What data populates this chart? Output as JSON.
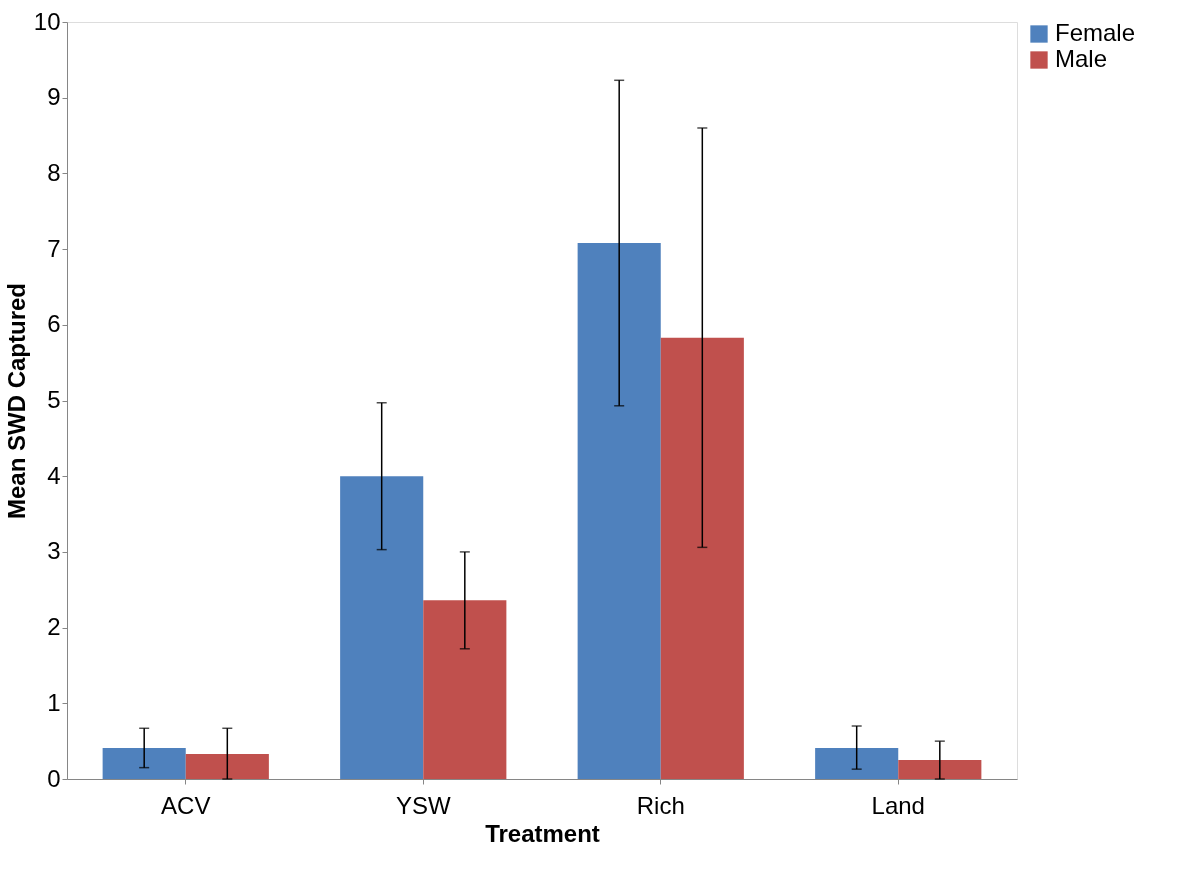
{
  "chart_data": {
    "type": "bar",
    "xlabel": "Treatment",
    "ylabel": "Mean SWD Captured",
    "categories": [
      "ACV",
      "YSW",
      "Rich",
      "Land"
    ],
    "series": [
      {
        "name": "Female",
        "color": "#4f81bd",
        "values": [
          0.41,
          4.0,
          7.08,
          0.41
        ],
        "errors": [
          [
            0.15,
            0.67
          ],
          [
            3.03,
            4.97
          ],
          [
            4.93,
            9.23
          ],
          [
            0.13,
            0.7
          ]
        ]
      },
      {
        "name": "Male",
        "color": "#c0504d",
        "values": [
          0.33,
          2.36,
          5.83,
          0.25
        ],
        "errors": [
          [
            0.0,
            0.67
          ],
          [
            1.72,
            3.0
          ],
          [
            3.06,
            8.6
          ],
          [
            0.0,
            0.5
          ]
        ]
      }
    ],
    "ylim": [
      0,
      10
    ],
    "yticks": [
      0,
      1,
      2,
      3,
      4,
      5,
      6,
      7,
      8,
      9,
      10
    ],
    "grid": false,
    "legend": "right"
  }
}
